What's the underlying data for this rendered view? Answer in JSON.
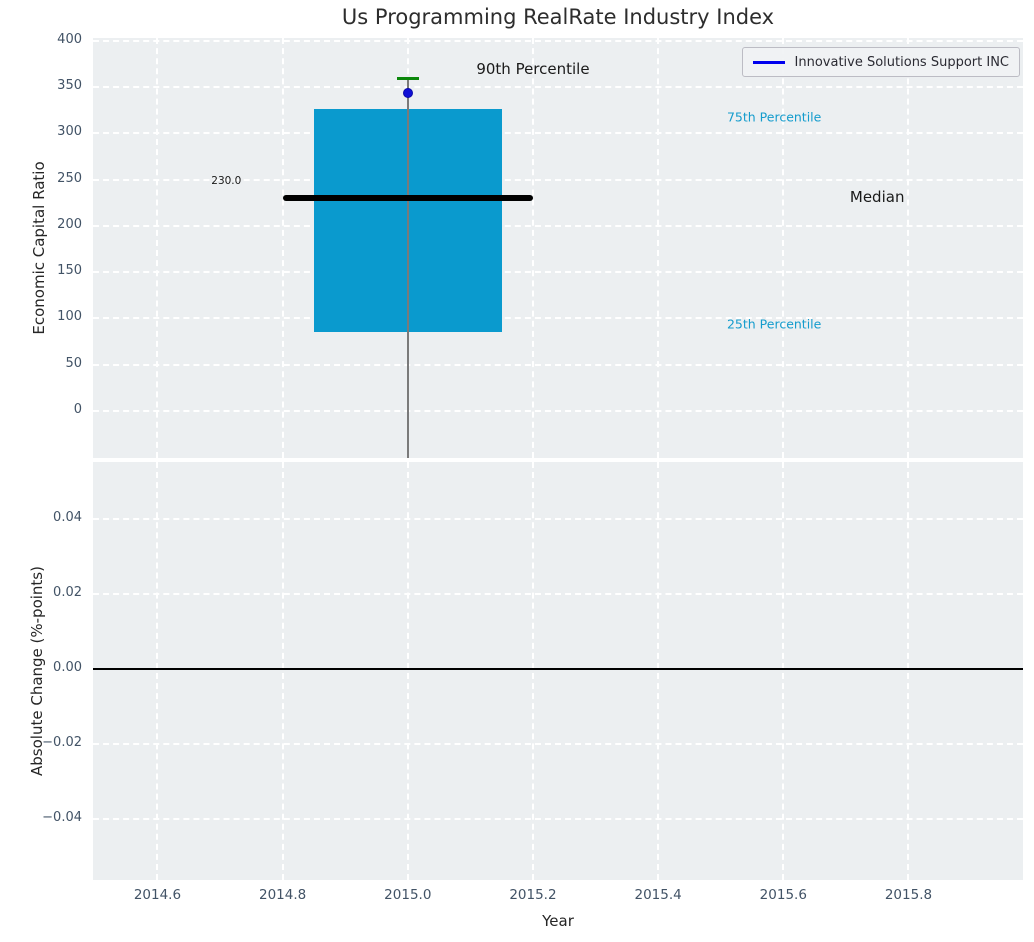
{
  "colors": {
    "box_fill": "#0a9ace",
    "percentile_text": "#149ccd",
    "p90_cap_green": "#0b870b",
    "company_blue": "#0f0fd6",
    "whisker_gray": "#7a7a7a",
    "plot_background": "#eceff1",
    "tick_label": "#425366",
    "grid_white": "#ffffff"
  },
  "chart_data": {
    "type": "boxplot",
    "title": "Us Programming RealRate Industry Index",
    "legend": {
      "label": "Innovative Solutions Support INC",
      "position": "upper right",
      "line_color": "#0000ee"
    },
    "x": {
      "label": "Year",
      "lim": [
        2014.497,
        2015.983
      ],
      "ticks": [
        {
          "value": 2014.6,
          "label": "2014.6"
        },
        {
          "value": 2014.8,
          "label": "2014.8"
        },
        {
          "value": 2015.0,
          "label": "2015.0"
        },
        {
          "value": 2015.2,
          "label": "2015.2"
        },
        {
          "value": 2015.4,
          "label": "2015.4"
        },
        {
          "value": 2015.6,
          "label": "2015.6"
        },
        {
          "value": 2015.8,
          "label": "2015.8"
        }
      ]
    },
    "top_panel": {
      "ylabel": "Economic Capital Ratio",
      "ylim": [
        -51,
        403
      ],
      "grid": "white dashed, on",
      "yticks": [
        {
          "value": 400,
          "label": "400"
        },
        {
          "value": 350,
          "label": "350"
        },
        {
          "value": 300,
          "label": "300"
        },
        {
          "value": 250,
          "label": "250"
        },
        {
          "value": 200,
          "label": "200"
        },
        {
          "value": 150,
          "label": "150"
        },
        {
          "value": 100,
          "label": "100"
        },
        {
          "value": 50,
          "label": "50"
        },
        {
          "value": 0,
          "label": "0"
        }
      ],
      "box": {
        "x": 2015.0,
        "box_halfwidth": 0.15,
        "median_halfwidth": 0.2,
        "p25": 85,
        "p75": 326,
        "median": 230,
        "p90": 359,
        "whisker_low_end": -51
      },
      "company_point": {
        "x": 2015.0,
        "y": 344,
        "series": "Innovative Solutions Support INC"
      },
      "annotations": {
        "p90": {
          "text": "90th Percentile",
          "x": 2015.2,
          "y": 370,
          "align": "center"
        },
        "p75": {
          "text": "75th Percentile",
          "x": 2015.51,
          "y": 318,
          "align": "left"
        },
        "median": {
          "text": "Median",
          "x": 2015.75,
          "y": 231,
          "align": "center"
        },
        "p25": {
          "text": "25th Percentile",
          "x": 2015.51,
          "y": 94,
          "align": "left"
        },
        "median_value": {
          "text": "230.0",
          "x": 2014.71,
          "y": 248,
          "align": "center"
        }
      }
    },
    "bottom_panel": {
      "ylabel": "Absolute Change (%-points)",
      "ylim": [
        -0.0563,
        0.0552
      ],
      "grid": "white dashed, on",
      "yticks": [
        {
          "value": 0.04,
          "label": "0.04"
        },
        {
          "value": 0.02,
          "label": "0.02"
        },
        {
          "value": 0.0,
          "label": "0.00"
        },
        {
          "value": -0.02,
          "label": "−0.02"
        },
        {
          "value": -0.04,
          "label": "−0.04"
        }
      ],
      "zero_line_y": 0.0,
      "series": []
    }
  }
}
